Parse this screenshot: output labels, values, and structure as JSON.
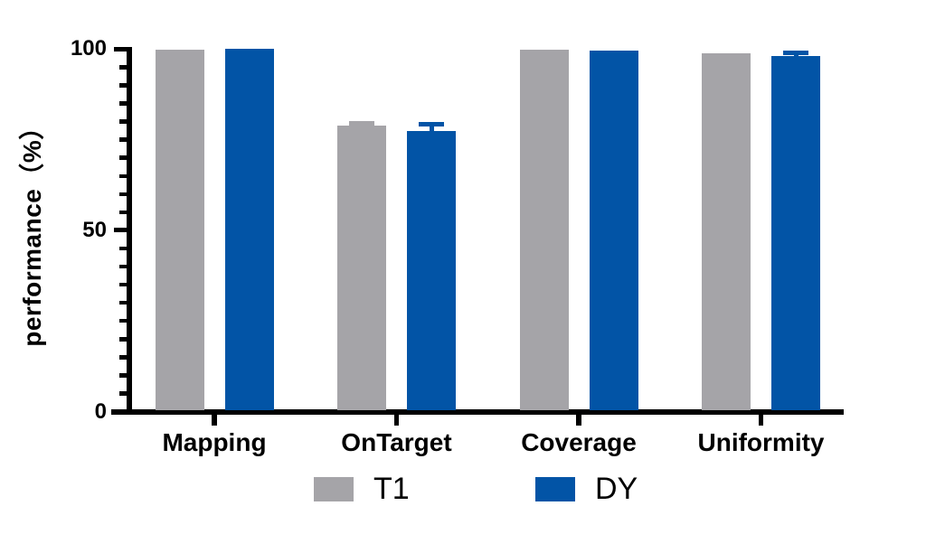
{
  "chart_data": {
    "type": "bar",
    "title": "",
    "categories": [
      "Mapping",
      "OnTarget",
      "Coverage",
      "Uniformity"
    ],
    "series": [
      {
        "name": "T1",
        "color": "#A5A4A8",
        "values": [
          99.9,
          79.0,
          99.9,
          98.9
        ],
        "errors": [
          0,
          0.5,
          0,
          0
        ]
      },
      {
        "name": "DY",
        "color": "#0254A6",
        "values": [
          100,
          77.5,
          99.7,
          98.2
        ],
        "errors": [
          0,
          1.8,
          0,
          0.9
        ]
      }
    ],
    "xlabel": "",
    "ylabel": "performance（%）",
    "ylim": [
      0,
      100
    ],
    "yticks": [
      0,
      50,
      100
    ],
    "minor_tick_step": 5,
    "grid": false,
    "legend_position": "bottom",
    "axis_color": "#000000",
    "background_color": "#ffffff"
  }
}
